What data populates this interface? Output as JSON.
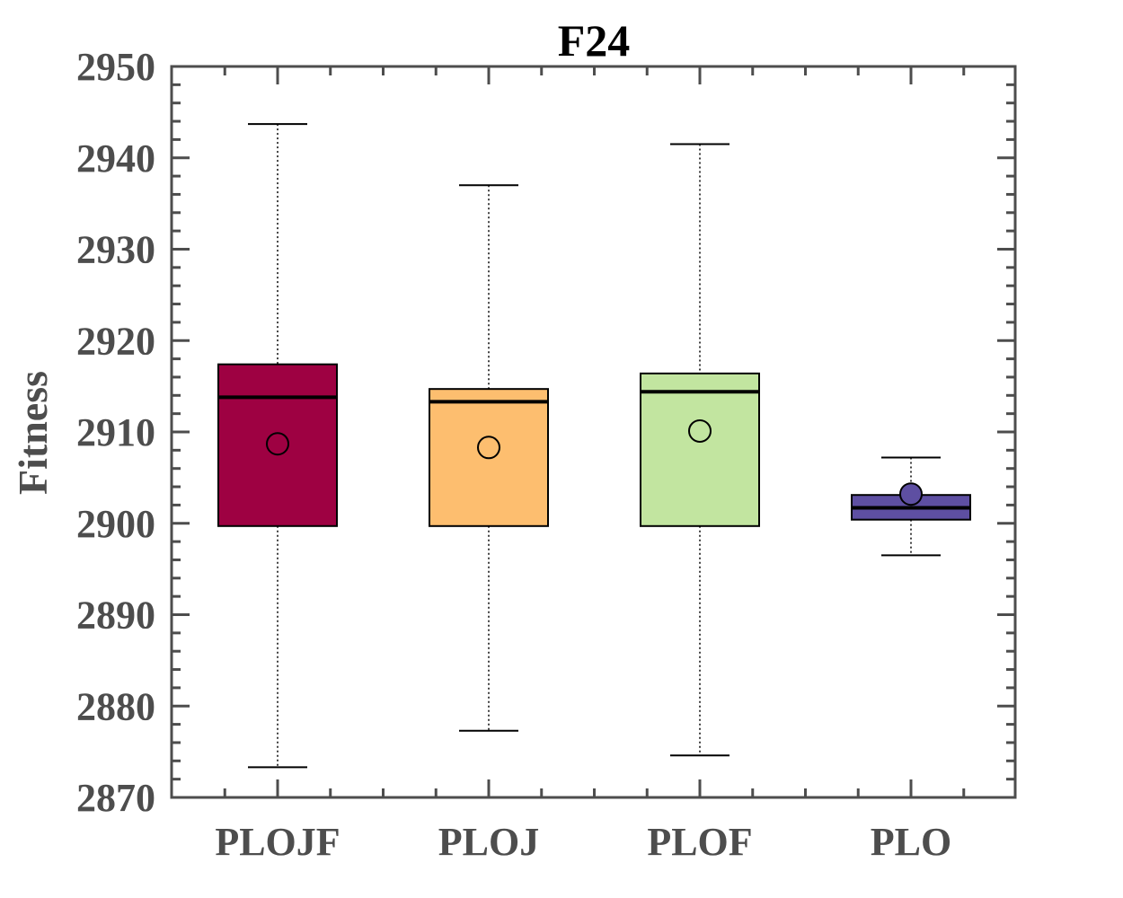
{
  "chart_data": {
    "type": "box",
    "title": "F24",
    "ylabel": "Fitness",
    "xlabel": "",
    "ylim": [
      2870,
      2950
    ],
    "yticks": [
      2870,
      2880,
      2890,
      2900,
      2910,
      2920,
      2930,
      2940,
      2950
    ],
    "ytick_labels": [
      "2870",
      "2880",
      "2890",
      "2900",
      "2910",
      "2920",
      "2930",
      "2940",
      "2950"
    ],
    "grid": false,
    "categories": [
      "PLOJF",
      "PLOJ",
      "PLOF",
      "PLO"
    ],
    "boxes": [
      {
        "category": "PLOJF",
        "whisker_low": 2873.3,
        "q1": 2899.7,
        "median": 2913.8,
        "q3": 2917.4,
        "whisker_high": 2943.7,
        "mean": 2908.7,
        "color": "#9e0142"
      },
      {
        "category": "PLOJ",
        "whisker_low": 2877.3,
        "q1": 2899.7,
        "median": 2913.3,
        "q3": 2914.7,
        "whisker_high": 2937.0,
        "mean": 2908.3,
        "color": "#fdbe6f"
      },
      {
        "category": "PLOF",
        "whisker_low": 2874.6,
        "q1": 2899.7,
        "median": 2914.4,
        "q3": 2916.4,
        "whisker_high": 2941.5,
        "mean": 2910.1,
        "color": "#c2e5a0"
      },
      {
        "category": "PLO",
        "whisker_low": 2896.5,
        "q1": 2900.4,
        "median": 2901.7,
        "q3": 2903.1,
        "whisker_high": 2907.2,
        "mean": 2903.2,
        "color": "#5e4fa2"
      }
    ]
  }
}
